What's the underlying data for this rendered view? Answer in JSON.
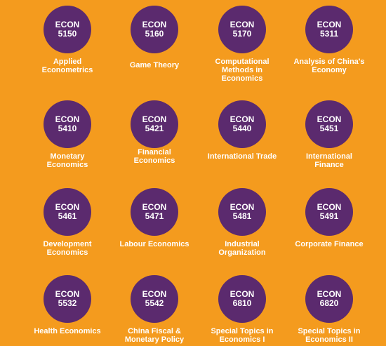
{
  "colors": {
    "background": "#F49B1E",
    "badge": "#5B2A6E",
    "text": "#FFFFFF"
  },
  "courses": [
    {
      "dept": "ECON",
      "number": "5150",
      "title": "Applied\nEconometrics"
    },
    {
      "dept": "ECON",
      "number": "5160",
      "title": "Game Theory"
    },
    {
      "dept": "ECON",
      "number": "5170",
      "title": "Computational\nMethods in\nEconomics"
    },
    {
      "dept": "ECON",
      "number": "5311",
      "title": "Analysis of China's\nEconomy"
    },
    {
      "dept": "ECON",
      "number": "5410",
      "title": "Monetary\nEconomics"
    },
    {
      "dept": "ECON",
      "number": "5421",
      "title": "Financial\nEconomics"
    },
    {
      "dept": "ECON",
      "number": "5440",
      "title": "International Trade"
    },
    {
      "dept": "ECON",
      "number": "5451",
      "title": "International\nFinance"
    },
    {
      "dept": "ECON",
      "number": "5461",
      "title": "Development\nEconomics"
    },
    {
      "dept": "ECON",
      "number": "5471",
      "title": "Labour Economics"
    },
    {
      "dept": "ECON",
      "number": "5481",
      "title": "Industrial\nOrganization"
    },
    {
      "dept": "ECON",
      "number": "5491",
      "title": "Corporate Finance"
    },
    {
      "dept": "ECON",
      "number": "5532",
      "title": "Health Economics"
    },
    {
      "dept": "ECON",
      "number": "5542",
      "title": "China Fiscal &\nMonetary Policy"
    },
    {
      "dept": "ECON",
      "number": "6810",
      "title": "Special Topics in\nEconomics I"
    },
    {
      "dept": "ECON",
      "number": "6820",
      "title": "Special Topics in\nEconomics II"
    }
  ]
}
